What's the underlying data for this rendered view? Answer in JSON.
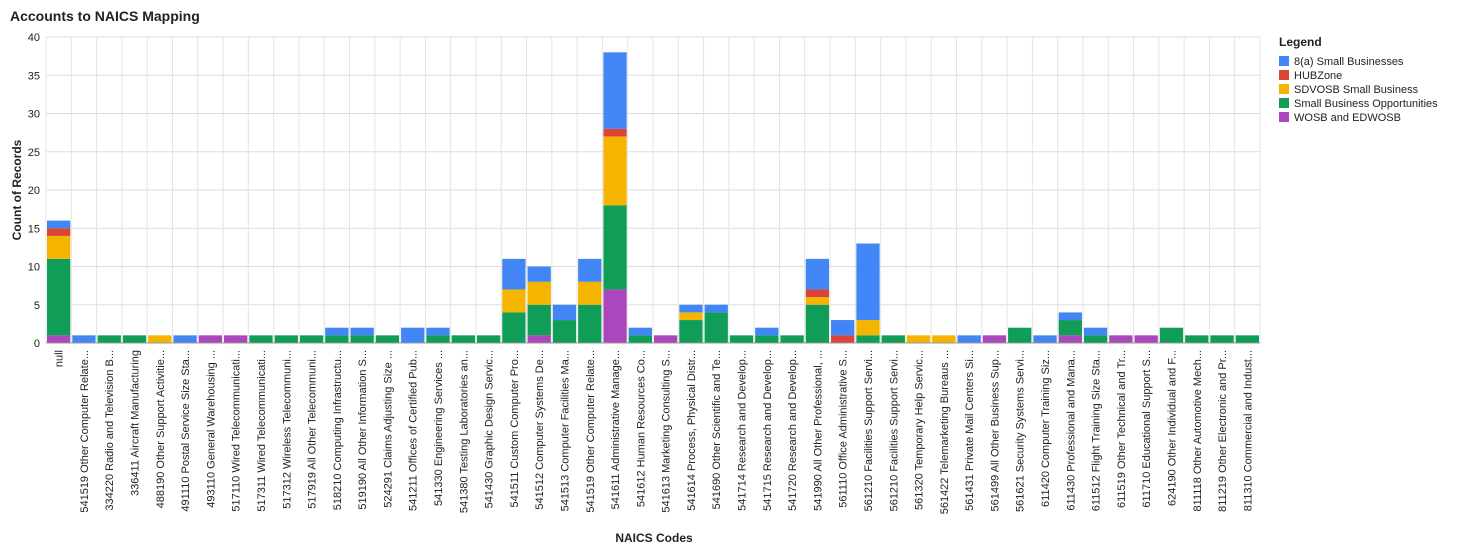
{
  "chart_data": {
    "type": "bar",
    "stacked": true,
    "title": "Accounts to NAICS Mapping",
    "xlabel": "NAICS Codes",
    "ylabel": "Count of Records",
    "ylim": [
      0,
      40
    ],
    "yticks": [
      0,
      5,
      10,
      15,
      20,
      25,
      30,
      35,
      40
    ],
    "grid": true,
    "legend": {
      "title": "Legend",
      "placement": "right"
    },
    "categories": [
      "null",
      "541519 Other Computer Relate...",
      "334220 Radio and Television B...",
      "336411 Aircraft Manufacturing",
      "488190 Other Support Activitie...",
      "491110 Postal Service Size Sta...",
      "493110 General Warehousing ...",
      "517110 Wired Telecommunicati...",
      "517311 Wired Telecommunicati...",
      "517312 Wireless Telecommuni...",
      "517919 All Other Telecommuni...",
      "518210 Computing Infrastructu...",
      "519190 All Other Information S...",
      "524291 Claims Adjusting Size ...",
      "541211 Offices of Certified Pub...",
      "541330 Engineering Services ...",
      "541380 Testing Laboratories an...",
      "541430 Graphic Design Servic...",
      "541511 Custom Computer Pro...",
      "541512 Computer Systems De...",
      "541513 Computer Facilities Ma...",
      "541519 Other Computer Relate...",
      "541611 Administrative Manage...",
      "541612 Human Resources Co...",
      "541613 Marketing Consulting S...",
      "541614 Process, Physical Distr...",
      "541690 Other Scientific and Te...",
      "541714 Research and Develop...",
      "541715 Research and Develop...",
      "541720 Research and Develop...",
      "541990 All Other Professional, ...",
      "561110 Office Administrative S...",
      "561210 Facilities Support Servi...",
      "561210 Facilities Support Servi...",
      "561320 Temporary Help Servic...",
      "561422 Telemarketing Bureaus ...",
      "561431 Private Mail Centers Si...",
      "561499 All Other Business Sup...",
      "561621 Security Systems Servi...",
      "611420 Computer Training Siz...",
      "611430 Professional and Mana...",
      "611512 Flight Training Size Sta...",
      "611519 Other Technical and Tr...",
      "611710 Educational Support S...",
      "624190 Other Individual and F...",
      "811118 Other Automotive Mech...",
      "811219 Other Electronic and Pr...",
      "811310 Commercial and Indust..."
    ],
    "series": [
      {
        "name": "WOSB and EDWOSB",
        "color": "#ab47bc",
        "values": [
          1,
          0,
          0,
          0,
          0,
          0,
          1,
          1,
          0,
          0,
          0,
          0,
          0,
          0,
          0,
          0,
          0,
          0,
          0,
          1,
          0,
          0,
          7,
          0,
          1,
          0,
          0,
          0,
          0,
          0,
          0,
          0,
          0,
          0,
          0,
          0,
          0,
          1,
          0,
          0,
          1,
          0,
          1,
          1,
          0,
          0,
          0,
          0
        ]
      },
      {
        "name": "Small Business Opportunities",
        "color": "#0f9d58",
        "values": [
          10,
          0,
          1,
          1,
          0,
          0,
          0,
          0,
          1,
          1,
          1,
          1,
          1,
          1,
          0,
          1,
          1,
          1,
          4,
          4,
          3,
          5,
          11,
          1,
          0,
          3,
          4,
          1,
          1,
          1,
          5,
          0,
          1,
          1,
          0,
          0,
          0,
          0,
          2,
          0,
          2,
          1,
          0,
          0,
          2,
          1,
          1,
          1
        ]
      },
      {
        "name": "SDVOSB Small Business",
        "color": "#f4b400",
        "values": [
          3,
          0,
          0,
          0,
          1,
          0,
          0,
          0,
          0,
          0,
          0,
          0,
          0,
          0,
          0,
          0,
          0,
          0,
          3,
          3,
          0,
          3,
          9,
          0,
          0,
          1,
          0,
          0,
          0,
          0,
          1,
          0,
          2,
          0,
          1,
          1,
          0,
          0,
          0,
          0,
          0,
          0,
          0,
          0,
          0,
          0,
          0,
          0
        ]
      },
      {
        "name": "HUBZone",
        "color": "#db4437",
        "values": [
          1,
          0,
          0,
          0,
          0,
          0,
          0,
          0,
          0,
          0,
          0,
          0,
          0,
          0,
          0,
          0,
          0,
          0,
          0,
          0,
          0,
          0,
          1,
          0,
          0,
          0,
          0,
          0,
          0,
          0,
          1,
          1,
          0,
          0,
          0,
          0,
          0,
          0,
          0,
          0,
          0,
          0,
          0,
          0,
          0,
          0,
          0,
          0
        ]
      },
      {
        "name": "8(a) Small Businesses",
        "color": "#4285f4",
        "values": [
          1,
          1,
          0,
          0,
          0,
          1,
          0,
          0,
          0,
          0,
          0,
          1,
          1,
          0,
          2,
          1,
          0,
          0,
          4,
          2,
          2,
          3,
          10,
          1,
          0,
          1,
          1,
          0,
          1,
          0,
          4,
          2,
          10,
          0,
          0,
          0,
          1,
          0,
          0,
          1,
          1,
          1,
          0,
          0,
          0,
          0,
          0,
          0
        ]
      }
    ],
    "legend_order": [
      "8(a) Small Businesses",
      "HUBZone",
      "SDVOSB Small Business",
      "Small Business Opportunities",
      "WOSB and EDWOSB"
    ]
  }
}
